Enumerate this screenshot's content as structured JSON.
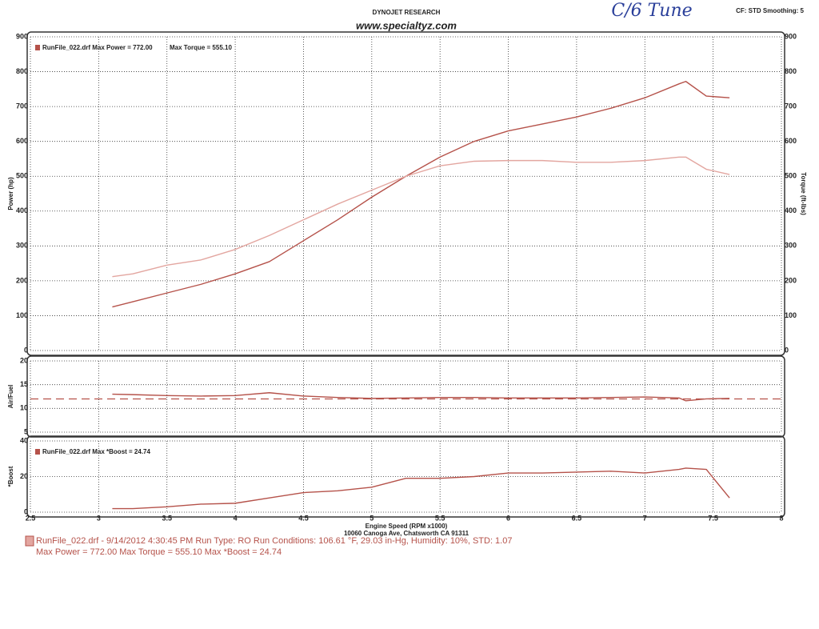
{
  "header": {
    "company": "DYNOJET RESEARCH",
    "website": "www.specialtyz.com",
    "note": "C/6 Tune",
    "settings": "CF: STD  Smoothing: 5"
  },
  "footer": {
    "run_info": "RunFile_022.drf - 9/14/2012 4:30:45 PM  Run Type: RO  Run Conditions: 106.61 °F, 29.03 in-Hg, Humidity:  10%, STD: 1.07",
    "maxima": "Max Power = 772.00  Max Torque = 555.10  Max *Boost = 24.74"
  },
  "chart_data": [
    {
      "type": "line",
      "ylabel": "Power (hp)",
      "y2label": "Torque (ft-lbs)",
      "legend": [
        "RunFile_022.drf Max Power = 772.00",
        "Max Torque = 555.10"
      ],
      "x": [
        3.1,
        3.25,
        3.5,
        3.75,
        4.0,
        4.25,
        4.5,
        4.75,
        5.0,
        5.25,
        5.5,
        5.75,
        6.0,
        6.25,
        6.5,
        6.75,
        7.0,
        7.25,
        7.3,
        7.45,
        7.62
      ],
      "series": [
        {
          "name": "Power",
          "color": "#b5524a",
          "values": [
            125,
            140,
            165,
            190,
            220,
            255,
            315,
            375,
            440,
            500,
            555,
            600,
            630,
            650,
            670,
            695,
            725,
            765,
            772,
            730,
            725
          ]
        },
        {
          "name": "Torque",
          "color": "#e3a6a0",
          "axis": "y2",
          "values": [
            212,
            220,
            245,
            260,
            290,
            330,
            375,
            420,
            460,
            500,
            530,
            543,
            545,
            545,
            540,
            540,
            545,
            555,
            555,
            520,
            505
          ]
        }
      ],
      "xlim": [
        2.5,
        8.0
      ],
      "xticks": [
        2.5,
        3.0,
        3.5,
        4.0,
        4.5,
        5.0,
        5.5,
        6.0,
        6.5,
        7.0,
        7.5,
        8.0
      ],
      "ylim": [
        0,
        900
      ],
      "yticks": [
        0,
        100,
        200,
        300,
        400,
        500,
        600,
        700,
        800,
        900
      ],
      "y2lim": [
        0,
        900
      ],
      "y2ticks": [
        0,
        100,
        200,
        300,
        400,
        500,
        600,
        700,
        800,
        900
      ],
      "grid": true
    },
    {
      "type": "line",
      "ylabel": "Air/Fuel",
      "x": [
        3.1,
        3.25,
        3.5,
        3.75,
        4.0,
        4.25,
        4.5,
        4.75,
        5.0,
        5.25,
        5.5,
        5.75,
        6.0,
        6.25,
        6.5,
        6.75,
        7.0,
        7.25,
        7.3,
        7.45,
        7.62
      ],
      "series": [
        {
          "name": "Air/Fuel",
          "color": "#b5524a",
          "values": [
            13.0,
            12.9,
            12.7,
            12.6,
            12.7,
            13.3,
            12.6,
            12.3,
            12.1,
            12.2,
            12.3,
            12.3,
            12.2,
            12.2,
            12.2,
            12.3,
            12.4,
            12.2,
            11.6,
            12.0,
            12.1
          ]
        }
      ],
      "reference_line": 12,
      "reference_color": "#b5524a",
      "xlim": [
        2.5,
        8.0
      ],
      "xticks": [
        2.5,
        3.0,
        3.5,
        4.0,
        4.5,
        5.0,
        5.5,
        6.0,
        6.5,
        7.0,
        7.5,
        8.0
      ],
      "ylim": [
        5,
        20
      ],
      "yticks": [
        5,
        10,
        15,
        20
      ],
      "grid": true
    },
    {
      "type": "line",
      "ylabel": "*Boost",
      "xlabel": "Engine Speed (RPM x1000)",
      "address": "10060 Canoga Ave, Chatsworth CA 91311",
      "legend": [
        "RunFile_022.drf Max *Boost = 24.74"
      ],
      "x": [
        3.1,
        3.25,
        3.5,
        3.75,
        4.0,
        4.25,
        4.5,
        4.75,
        5.0,
        5.25,
        5.5,
        5.75,
        6.0,
        6.25,
        6.5,
        6.75,
        7.0,
        7.25,
        7.3,
        7.45,
        7.62
      ],
      "series": [
        {
          "name": "*Boost",
          "color": "#b5524a",
          "values": [
            2,
            2,
            3,
            4.5,
            5,
            8,
            11,
            12,
            14,
            19,
            19,
            20,
            22,
            22,
            22.5,
            23,
            22,
            24,
            24.74,
            24,
            8
          ]
        }
      ],
      "xlim": [
        2.5,
        8.0
      ],
      "xticks": [
        2.5,
        3.0,
        3.5,
        4.0,
        4.5,
        5.0,
        5.5,
        6.0,
        6.5,
        7.0,
        7.5,
        8.0
      ],
      "ylim": [
        0,
        40
      ],
      "yticks": [
        0,
        20,
        40
      ],
      "grid": true
    }
  ]
}
